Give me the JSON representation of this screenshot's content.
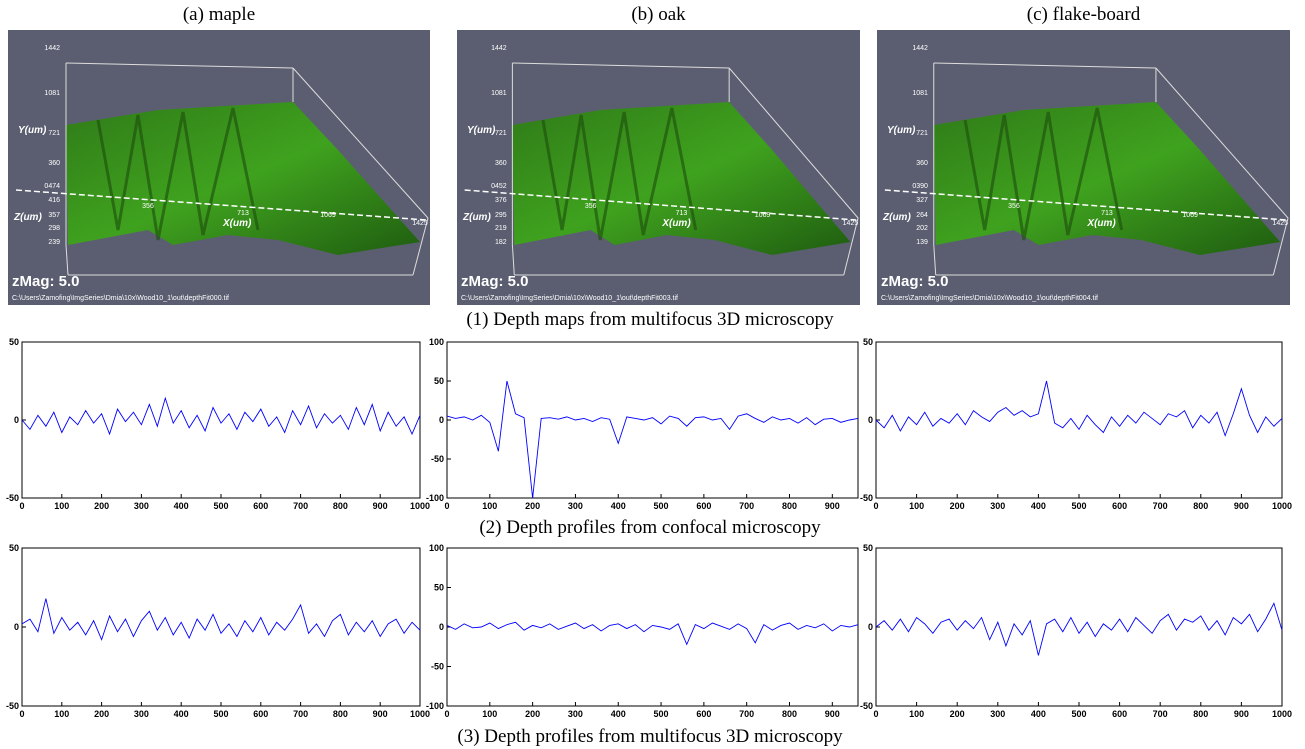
{
  "column_titles": [
    "(a) maple",
    "(b) oak",
    "(c) flake-board"
  ],
  "row_captions": [
    "(1) Depth maps from multifocus 3D microscopy",
    "(2) Depth profiles from confocal microscopy",
    "(3) Depth profiles from multifocus 3D microscopy"
  ],
  "depth_maps": [
    {
      "y_axis_label": "Y(um)",
      "z_axis_label": "Z(um)",
      "x_axis_label": "X(um)",
      "y_labels": [
        "1442",
        "1081",
        "721",
        "360"
      ],
      "z_labels": [
        "0474",
        "416",
        "357",
        "298",
        "239"
      ],
      "x_labels": [
        "356",
        "713",
        "1069",
        "1425"
      ],
      "zmag": "zMag: 5.0",
      "file": "C:\\Users\\Zamofing\\ImgSeries\\Dmia\\10x\\Wood10_1\\out\\depthFit000.tif"
    },
    {
      "y_axis_label": "Y(um)",
      "z_axis_label": "Z(um)",
      "x_axis_label": "X(um)",
      "y_labels": [
        "1442",
        "1081",
        "721",
        "360"
      ],
      "z_labels": [
        "0452",
        "376",
        "295",
        "219",
        "182"
      ],
      "x_labels": [
        "356",
        "713",
        "1069",
        "1425"
      ],
      "zmag": "zMag: 5.0",
      "file": "C:\\Users\\Zamofing\\ImgSeries\\Dmia\\10x\\Wood10_1\\out\\depthFit003.tif"
    },
    {
      "y_axis_label": "Y(um)",
      "z_axis_label": "Z(um)",
      "x_axis_label": "X(um)",
      "y_labels": [
        "1442",
        "1081",
        "721",
        "360"
      ],
      "z_labels": [
        "0390",
        "327",
        "264",
        "202",
        "139"
      ],
      "x_labels": [
        "356",
        "713",
        "1069",
        "1425"
      ],
      "zmag": "zMag: 5.0",
      "file": "C:\\Users\\Zamofing\\ImgSeries\\Dmia\\10x\\Wood10_1\\out\\depthFit004.tif"
    }
  ],
  "chart_data": [
    {
      "type": "line",
      "color": "#0000ff",
      "xlim": [
        0,
        1000
      ],
      "ylim": [
        -50,
        50
      ],
      "xticks": [
        0,
        100,
        200,
        300,
        400,
        500,
        600,
        700,
        800,
        900,
        1000
      ],
      "yticks": [
        -50,
        0,
        50
      ],
      "x": [
        0,
        20,
        40,
        60,
        80,
        100,
        120,
        140,
        160,
        180,
        200,
        220,
        240,
        260,
        280,
        300,
        320,
        340,
        360,
        380,
        400,
        420,
        440,
        460,
        480,
        500,
        520,
        540,
        560,
        580,
        600,
        620,
        640,
        660,
        680,
        700,
        720,
        740,
        760,
        780,
        800,
        820,
        840,
        860,
        880,
        900,
        920,
        940,
        960,
        980,
        1000
      ],
      "values": [
        0,
        -6,
        3,
        -4,
        5,
        -8,
        2,
        -3,
        6,
        -2,
        4,
        -9,
        7,
        -1,
        5,
        -3,
        10,
        -4,
        14,
        -2,
        6,
        -5,
        3,
        -7,
        8,
        -2,
        4,
        -6,
        5,
        -1,
        7,
        -4,
        2,
        -8,
        6,
        -3,
        9,
        -5,
        4,
        -2,
        3,
        -6,
        8,
        -3,
        10,
        -7,
        5,
        -4,
        2,
        -9,
        3
      ]
    },
    {
      "type": "line",
      "color": "#0000ff",
      "xlim": [
        0,
        960
      ],
      "ylim": [
        -100,
        100
      ],
      "xticks": [
        0,
        100,
        200,
        300,
        400,
        500,
        600,
        700,
        800,
        900
      ],
      "yticks": [
        -100,
        -50,
        0,
        50,
        100
      ],
      "x": [
        0,
        20,
        40,
        60,
        80,
        100,
        120,
        140,
        160,
        180,
        200,
        220,
        240,
        260,
        280,
        300,
        320,
        340,
        360,
        380,
        400,
        420,
        440,
        460,
        480,
        500,
        520,
        540,
        560,
        580,
        600,
        620,
        640,
        660,
        680,
        700,
        720,
        740,
        760,
        780,
        800,
        820,
        840,
        860,
        880,
        900,
        920,
        940,
        960
      ],
      "values": [
        5,
        2,
        4,
        0,
        6,
        -3,
        -40,
        50,
        8,
        3,
        -100,
        2,
        3,
        1,
        4,
        0,
        2,
        -2,
        3,
        1,
        -30,
        4,
        2,
        0,
        3,
        -5,
        5,
        2,
        -8,
        3,
        4,
        0,
        2,
        -12,
        5,
        8,
        2,
        -3,
        4,
        0,
        2,
        -4,
        3,
        -6,
        1,
        2,
        -3,
        0,
        2
      ]
    },
    {
      "type": "line",
      "color": "#0000ff",
      "xlim": [
        0,
        1000
      ],
      "ylim": [
        -50,
        50
      ],
      "xticks": [
        0,
        100,
        200,
        300,
        400,
        500,
        600,
        700,
        800,
        900,
        1000
      ],
      "yticks": [
        -50,
        0,
        50
      ],
      "x": [
        0,
        20,
        40,
        60,
        80,
        100,
        120,
        140,
        160,
        180,
        200,
        220,
        240,
        260,
        280,
        300,
        320,
        340,
        360,
        380,
        400,
        420,
        440,
        460,
        480,
        500,
        520,
        540,
        560,
        580,
        600,
        620,
        640,
        660,
        680,
        700,
        720,
        740,
        760,
        780,
        800,
        820,
        840,
        860,
        880,
        900,
        920,
        940,
        960,
        980,
        1000
      ],
      "values": [
        0,
        -5,
        3,
        -7,
        2,
        -3,
        5,
        -4,
        1,
        -2,
        4,
        -3,
        6,
        2,
        -1,
        5,
        8,
        3,
        6,
        2,
        4,
        25,
        -2,
        -5,
        1,
        -6,
        3,
        -3,
        -8,
        2,
        -4,
        3,
        -2,
        5,
        1,
        -3,
        4,
        2,
        6,
        -5,
        3,
        -2,
        5,
        -10,
        4,
        20,
        3,
        -8,
        2,
        -4,
        1
      ]
    },
    {
      "type": "line",
      "color": "#0000ff",
      "xlim": [
        0,
        1000
      ],
      "ylim": [
        -50,
        50
      ],
      "xticks": [
        0,
        100,
        200,
        300,
        400,
        500,
        600,
        700,
        800,
        900,
        1000
      ],
      "yticks": [
        -50,
        0,
        50
      ],
      "x": [
        0,
        20,
        40,
        60,
        80,
        100,
        120,
        140,
        160,
        180,
        200,
        220,
        240,
        260,
        280,
        300,
        320,
        340,
        360,
        380,
        400,
        420,
        440,
        460,
        480,
        500,
        520,
        540,
        560,
        580,
        600,
        620,
        640,
        660,
        680,
        700,
        720,
        740,
        760,
        780,
        800,
        820,
        840,
        860,
        880,
        900,
        920,
        940,
        960,
        980,
        1000
      ],
      "values": [
        2,
        5,
        -3,
        18,
        -4,
        6,
        -2,
        3,
        -5,
        4,
        -8,
        7,
        -3,
        5,
        -6,
        4,
        10,
        -2,
        6,
        -5,
        3,
        -7,
        5,
        -2,
        8,
        -4,
        2,
        -6,
        4,
        -3,
        6,
        -5,
        3,
        -2,
        5,
        14,
        -4,
        2,
        -6,
        4,
        8,
        -5,
        3,
        -3,
        4,
        -6,
        2,
        5,
        -4,
        3,
        -2
      ]
    },
    {
      "type": "line",
      "color": "#0000ff",
      "xlim": [
        0,
        960
      ],
      "ylim": [
        -100,
        100
      ],
      "xticks": [
        0,
        100,
        200,
        300,
        400,
        500,
        600,
        700,
        800,
        900
      ],
      "yticks": [
        -100,
        -50,
        0,
        50,
        100
      ],
      "x": [
        0,
        20,
        40,
        60,
        80,
        100,
        120,
        140,
        160,
        180,
        200,
        220,
        240,
        260,
        280,
        300,
        320,
        340,
        360,
        380,
        400,
        420,
        440,
        460,
        480,
        500,
        520,
        540,
        560,
        580,
        600,
        620,
        640,
        660,
        680,
        700,
        720,
        740,
        760,
        780,
        800,
        820,
        840,
        860,
        880,
        900,
        920,
        940,
        960
      ],
      "values": [
        2,
        -3,
        4,
        -1,
        0,
        5,
        -2,
        3,
        6,
        -4,
        2,
        -1,
        4,
        -3,
        1,
        5,
        -2,
        3,
        -5,
        2,
        4,
        -2,
        3,
        -6,
        2,
        0,
        -3,
        4,
        -22,
        3,
        -2,
        5,
        1,
        -3,
        4,
        -2,
        -20,
        3,
        -4,
        2,
        5,
        -3,
        2,
        -1,
        4,
        -5,
        2,
        0,
        3
      ]
    },
    {
      "type": "line",
      "color": "#0000ff",
      "xlim": [
        0,
        1000
      ],
      "ylim": [
        -50,
        50
      ],
      "xticks": [
        0,
        100,
        200,
        300,
        400,
        500,
        600,
        700,
        800,
        900,
        1000
      ],
      "yticks": [
        -50,
        0,
        50
      ],
      "x": [
        0,
        20,
        40,
        60,
        80,
        100,
        120,
        140,
        160,
        180,
        200,
        220,
        240,
        260,
        280,
        300,
        320,
        340,
        360,
        380,
        400,
        420,
        440,
        460,
        480,
        500,
        520,
        540,
        560,
        580,
        600,
        620,
        640,
        660,
        680,
        700,
        720,
        740,
        760,
        780,
        800,
        820,
        840,
        860,
        880,
        900,
        920,
        940,
        960,
        980,
        1000
      ],
      "values": [
        0,
        4,
        -2,
        5,
        -3,
        6,
        2,
        -4,
        3,
        5,
        -2,
        4,
        -1,
        6,
        -8,
        3,
        -12,
        2,
        -5,
        4,
        -18,
        2,
        5,
        -3,
        6,
        -4,
        3,
        -6,
        2,
        -2,
        5,
        -3,
        6,
        1,
        -4,
        4,
        8,
        -2,
        5,
        3,
        7,
        -2,
        4,
        -5,
        6,
        2,
        8,
        -3,
        5,
        15,
        -2
      ]
    }
  ]
}
